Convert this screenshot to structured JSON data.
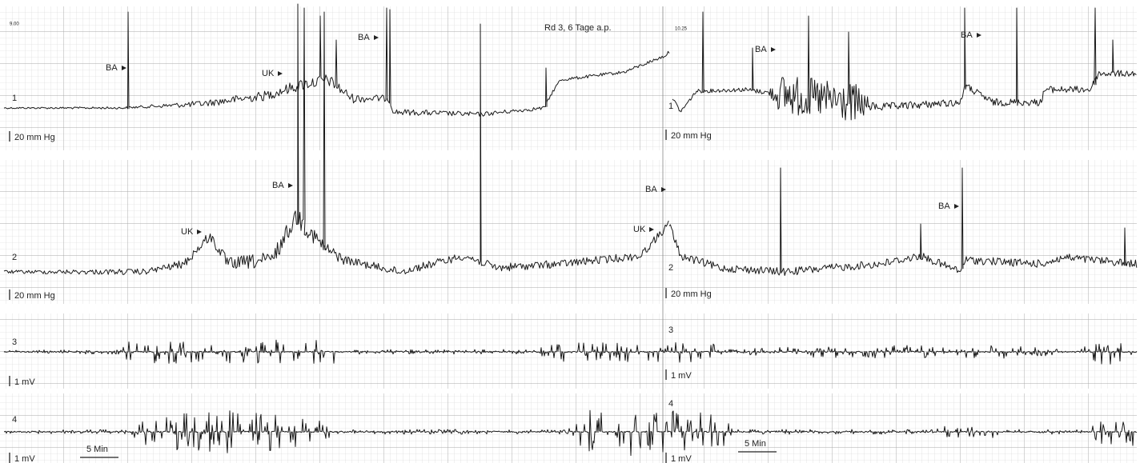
{
  "title": "Rd 3, 6 Tage a.p.",
  "panels": [
    {
      "start_time": "9.00",
      "channels": [
        {
          "number": "1",
          "scale": "20 mm Hg"
        },
        {
          "number": "2",
          "scale": "20 mm Hg"
        },
        {
          "number": "3",
          "scale": "1 mV"
        },
        {
          "number": "4",
          "scale": "1 mV"
        }
      ],
      "markers": [
        {
          "label": "BA"
        },
        {
          "label": "UK"
        },
        {
          "label": "BA"
        },
        {
          "label": "UK"
        },
        {
          "label": "BA"
        }
      ],
      "time_scale": "5 Min"
    },
    {
      "start_time": "10.25",
      "channels": [
        {
          "number": "1",
          "scale": "20 mm Hg"
        },
        {
          "number": "2",
          "scale": "20 mm Hg"
        },
        {
          "number": "3",
          "scale": "1 mV"
        },
        {
          "number": "4",
          "scale": "1 mV"
        }
      ],
      "markers": [
        {
          "label": "BA"
        },
        {
          "label": "BA"
        },
        {
          "label": "BA"
        },
        {
          "label": "UK"
        },
        {
          "label": "BA"
        }
      ],
      "time_scale": "5 Min"
    }
  ]
}
